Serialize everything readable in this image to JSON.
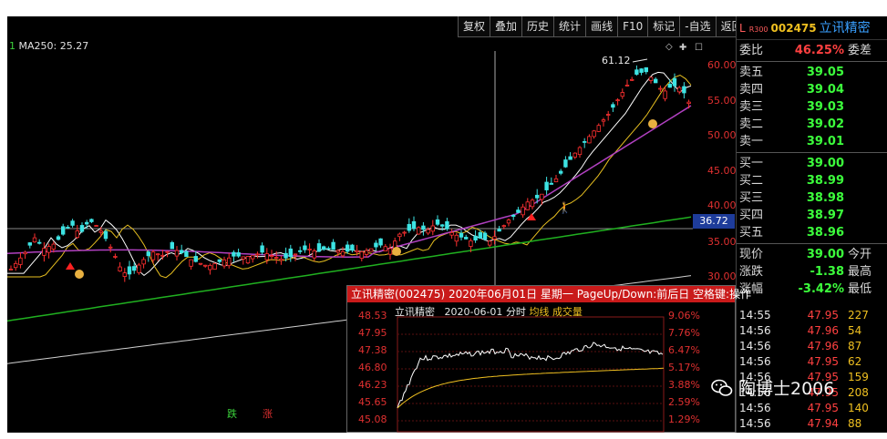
{
  "toolbar": [
    "复权",
    "叠加",
    "历史",
    "统计",
    "画线",
    "F10",
    "标记",
    "-自选",
    "返回"
  ],
  "ma_label": {
    "prefix": "1",
    "text": "MA250: 25.27"
  },
  "price_axis": [
    "60.00",
    "55.00",
    "50.00",
    "45.00",
    "40.00",
    "35.00",
    "30.00"
  ],
  "current_price_tag": "36.72",
  "peak_label": "61.12",
  "legend": {
    "buy": "跌",
    "sell": "涨"
  },
  "stock": {
    "prefix": "L",
    "r_top": "R",
    "r_bottom": "300",
    "code": "002475",
    "name": "立讯精密"
  },
  "order_ratio": {
    "label": "委比",
    "value": "46.25%",
    "extra": "委差"
  },
  "sells": [
    {
      "label": "卖五",
      "price": "39.05"
    },
    {
      "label": "卖四",
      "price": "39.04"
    },
    {
      "label": "卖三",
      "price": "39.03"
    },
    {
      "label": "卖二",
      "price": "39.02"
    },
    {
      "label": "卖一",
      "price": "39.01"
    }
  ],
  "buys": [
    {
      "label": "买一",
      "price": "39.00"
    },
    {
      "label": "买二",
      "price": "38.99"
    },
    {
      "label": "买三",
      "price": "38.98"
    },
    {
      "label": "买四",
      "price": "38.97"
    },
    {
      "label": "买五",
      "price": "38.96"
    }
  ],
  "quote": [
    {
      "label": "现价",
      "value": "39.00",
      "extra": "今开",
      "color": "green"
    },
    {
      "label": "涨跌",
      "value": "-1.38",
      "extra": "最高",
      "color": "green"
    },
    {
      "label": "涨幅",
      "value": "-3.42%",
      "extra": "最低",
      "color": "green"
    }
  ],
  "ticks": [
    {
      "time": "14:55",
      "price": "47.95",
      "vol": "227"
    },
    {
      "time": "14:56",
      "price": "47.96",
      "vol": "54"
    },
    {
      "time": "14:56",
      "price": "47.96",
      "vol": "87"
    },
    {
      "time": "14:56",
      "price": "47.95",
      "vol": "62"
    },
    {
      "time": "14:56",
      "price": "47.95",
      "vol": "159"
    },
    {
      "time": "14:56",
      "price": "47.95",
      "vol": "208"
    },
    {
      "time": "14:56",
      "price": "47.95",
      "vol": "140"
    },
    {
      "time": "14:56",
      "price": "47.94",
      "vol": "88"
    }
  ],
  "popup": {
    "title": "立讯精密(002475) 2020年06月01日 星期一 PageUp/Down:前后日 空格键:操作",
    "name": "立讯精密",
    "date": "2020-06-01",
    "type": "分时",
    "avg": "均线",
    "vol": "成交量",
    "left_prices": [
      "48.53",
      "47.95",
      "47.38",
      "46.80",
      "46.23",
      "45.65",
      "45.08"
    ],
    "right_pcts": [
      "9.06%",
      "7.76%",
      "6.47%",
      "5.17%",
      "3.88%",
      "2.59%",
      "1.29%"
    ]
  },
  "watermark": "陶博士2006",
  "colors": {
    "up": "#ff3030",
    "down": "#3de3e3",
    "ma_white": "#ffffff",
    "ma_yellow": "#e8c020",
    "ma_purple": "#b040c0",
    "ma_green": "#20b020"
  }
}
